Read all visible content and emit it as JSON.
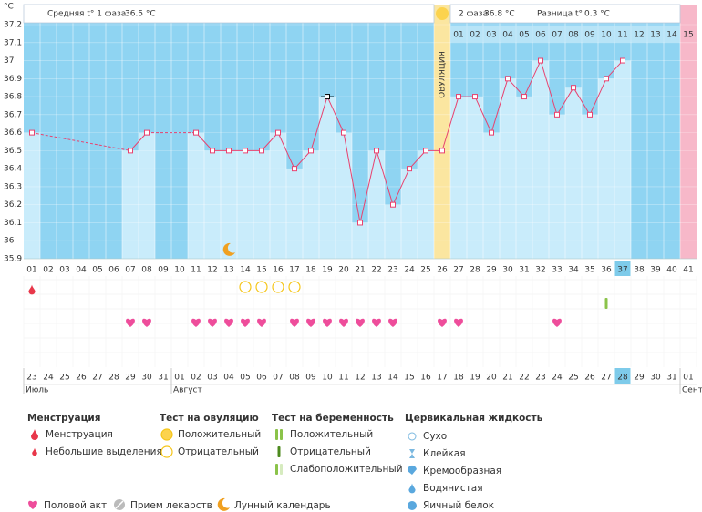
{
  "chart_data": {
    "type": "line",
    "y_unit_label": "°C",
    "categories": [
      "01",
      "02",
      "03",
      "04",
      "05",
      "06",
      "07",
      "08",
      "09",
      "10",
      "11",
      "12",
      "13",
      "14",
      "15",
      "16",
      "17",
      "18",
      "19",
      "20",
      "21",
      "22",
      "23",
      "24",
      "25",
      "26",
      "27",
      "28",
      "29",
      "30",
      "31",
      "32",
      "33",
      "34",
      "35",
      "36",
      "37",
      "38",
      "39",
      "40",
      "41"
    ],
    "values": [
      36.6,
      null,
      null,
      null,
      null,
      null,
      36.5,
      36.6,
      null,
      null,
      36.6,
      36.5,
      36.5,
      36.5,
      36.5,
      36.6,
      36.4,
      36.5,
      36.8,
      36.6,
      36.1,
      36.5,
      36.2,
      36.4,
      36.5,
      36.5,
      36.8,
      36.8,
      36.6,
      36.9,
      36.8,
      37.0,
      36.7,
      36.85,
      36.7,
      36.9,
      37.0,
      null,
      null,
      null,
      null
    ],
    "ylim": [
      35.9,
      37.2
    ],
    "yticks": [
      35.9,
      36,
      36.1,
      36.2,
      36.3,
      36.4,
      36.5,
      36.6,
      36.7,
      36.8,
      36.9,
      37,
      37.1,
      37.2
    ],
    "grid": true,
    "line_color": "#e8426f",
    "bar_color": "#c9ecfb",
    "background_color": "#8fd4f2",
    "ovulation_index": 25,
    "ovulation_label": "ОВУЛЯЦИЯ",
    "ovulation_color": "#fbe6a0",
    "phase2_days": [
      "01",
      "02",
      "03",
      "04",
      "05",
      "06",
      "07",
      "08",
      "09",
      "10",
      "11",
      "12",
      "13",
      "14",
      "15"
    ],
    "last_day_color": "#f7b8c9",
    "today_index": 36,
    "selected_index": 18,
    "dates": [
      "23",
      "24",
      "25",
      "26",
      "27",
      "28",
      "29",
      "30",
      "31",
      "01",
      "02",
      "03",
      "04",
      "05",
      "06",
      "07",
      "08",
      "09",
      "10",
      "11",
      "12",
      "13",
      "14",
      "15",
      "16",
      "17",
      "18",
      "19",
      "20",
      "21",
      "22",
      "23",
      "24",
      "25",
      "26",
      "27",
      "28",
      "29",
      "30",
      "31",
      "01"
    ],
    "weekends": [
      3,
      4,
      10,
      11,
      17,
      18,
      24,
      25,
      31,
      32,
      38,
      39
    ],
    "weekend_color": "#e0245e",
    "months": [
      {
        "label": "Июль",
        "index": 0
      },
      {
        "label": "Август",
        "index": 9
      },
      {
        "label": "Сент",
        "index": 40
      }
    ],
    "rows": {
      "menstruation": [
        0
      ],
      "ovulation_test_negative": [
        13,
        14,
        15,
        16
      ],
      "pregnancy_test_weak": [
        35
      ],
      "intercourse": [
        6,
        7,
        10,
        11,
        12,
        13,
        14,
        16,
        17,
        18,
        19,
        20,
        21,
        22,
        25,
        26,
        32
      ],
      "moon": [
        12
      ]
    }
  },
  "header": {
    "phase1_label": "Средняя t° 1 фаза",
    "phase1_value": "36.5 °C",
    "phase2_label": "2 фаза",
    "phase2_value": "36.8 °C",
    "diff_label": "Разница t°",
    "diff_value": "0.3 °C"
  },
  "legend": {
    "groups": [
      {
        "title": "Менструация",
        "items": [
          "Менструация",
          "Небольшие выделения"
        ]
      },
      {
        "title": "Тест на овуляцию",
        "items": [
          "Положительный",
          "Отрицательный"
        ]
      },
      {
        "title": "Тест на беременность",
        "items": [
          "Положительный",
          "Отрицательный",
          "Слабоположительный"
        ]
      },
      {
        "title": "Цервикальная жидкость",
        "items": [
          "Сухо",
          "Клейкая",
          "Кремообразная",
          "Водянистая",
          "Яичный белок"
        ]
      }
    ],
    "bottom": [
      "Половой акт",
      "Прием лекарств",
      "Лунный календарь"
    ]
  }
}
